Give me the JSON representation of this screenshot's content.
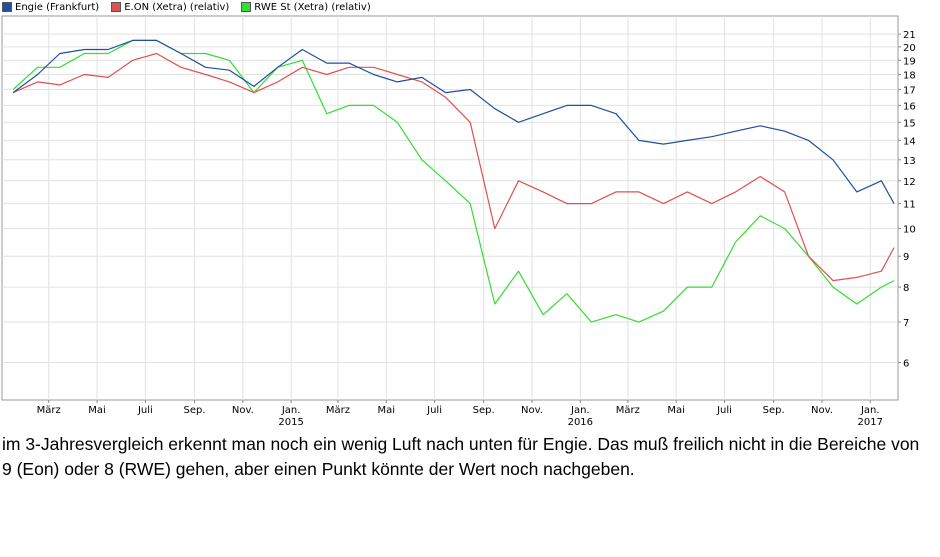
{
  "chart_data": {
    "type": "line",
    "title": "",
    "xlabel": "",
    "ylabel": "",
    "y_scale": "log",
    "ylim": [
      5.2,
      22.5
    ],
    "y_ticks": [
      6,
      7,
      8,
      9,
      10,
      11,
      12,
      13,
      14,
      15,
      16,
      17,
      18,
      19,
      20,
      21
    ],
    "grid": true,
    "legend_position": "top-left",
    "x_ticks": [
      {
        "label": "März",
        "year": ""
      },
      {
        "label": "Mai",
        "year": ""
      },
      {
        "label": "Juli",
        "year": ""
      },
      {
        "label": "Sep.",
        "year": ""
      },
      {
        "label": "Nov.",
        "year": ""
      },
      {
        "label": "Jan.",
        "year": "2015"
      },
      {
        "label": "März",
        "year": ""
      },
      {
        "label": "Mai",
        "year": ""
      },
      {
        "label": "Juli",
        "year": ""
      },
      {
        "label": "Sep.",
        "year": ""
      },
      {
        "label": "Nov.",
        "year": ""
      },
      {
        "label": "Jan.",
        "year": "2016"
      },
      {
        "label": "März",
        "year": ""
      },
      {
        "label": "Mai",
        "year": ""
      },
      {
        "label": "Juli",
        "year": ""
      },
      {
        "label": "Sep.",
        "year": ""
      },
      {
        "label": "Nov.",
        "year": ""
      },
      {
        "label": "Jan.",
        "year": "2017"
      }
    ],
    "x": [
      "2014-01-15",
      "2014-02-15",
      "2014-03-15",
      "2014-04-15",
      "2014-05-15",
      "2014-06-15",
      "2014-07-15",
      "2014-08-15",
      "2014-09-15",
      "2014-10-15",
      "2014-11-15",
      "2014-12-15",
      "2015-01-15",
      "2015-02-15",
      "2015-03-15",
      "2015-04-15",
      "2015-05-15",
      "2015-06-15",
      "2015-07-15",
      "2015-08-15",
      "2015-09-15",
      "2015-10-15",
      "2015-11-15",
      "2015-12-15",
      "2016-01-15",
      "2016-02-15",
      "2016-03-15",
      "2016-04-15",
      "2016-05-15",
      "2016-06-15",
      "2016-07-15",
      "2016-08-15",
      "2016-09-15",
      "2016-10-15",
      "2016-11-15",
      "2016-12-15",
      "2017-01-15",
      "2017-01-31"
    ],
    "series": [
      {
        "name": "Engie (Frankfurt)",
        "color": "#1f4fa0",
        "values": [
          16.8,
          18.0,
          19.5,
          19.8,
          19.8,
          20.5,
          20.5,
          19.5,
          18.5,
          18.3,
          17.2,
          18.5,
          19.8,
          18.8,
          18.8,
          18.0,
          17.5,
          17.8,
          16.8,
          17.0,
          15.8,
          15.0,
          15.5,
          16.0,
          16.0,
          15.5,
          14.0,
          13.8,
          14.0,
          14.2,
          14.5,
          14.8,
          14.5,
          14.0,
          13.0,
          11.5,
          12.0,
          11.0
        ]
      },
      {
        "name": "E.ON (Xetra) (relativ)",
        "color": "#e05050",
        "values": [
          16.8,
          17.5,
          17.3,
          18.0,
          17.8,
          19.0,
          19.5,
          18.5,
          18.0,
          17.5,
          16.8,
          17.5,
          18.5,
          18.0,
          18.5,
          18.5,
          18.0,
          17.5,
          16.5,
          15.0,
          10.0,
          12.0,
          11.5,
          11.0,
          11.0,
          11.5,
          11.5,
          11.0,
          11.5,
          11.0,
          11.5,
          12.2,
          11.5,
          9.0,
          8.2,
          8.3,
          8.5,
          9.3
        ]
      },
      {
        "name": "RWE St (Xetra) (relativ)",
        "color": "#33dd33",
        "values": [
          17.0,
          18.5,
          18.5,
          19.5,
          19.5,
          20.5,
          20.5,
          19.5,
          19.5,
          19.0,
          16.8,
          18.5,
          19.0,
          15.5,
          16.0,
          16.0,
          15.0,
          13.0,
          12.0,
          11.0,
          7.5,
          8.5,
          7.2,
          7.8,
          7.0,
          7.2,
          7.0,
          7.3,
          8.0,
          8.0,
          9.5,
          10.5,
          10.0,
          9.0,
          8.0,
          7.5,
          8.0,
          8.2
        ]
      }
    ]
  },
  "caption": "im 3-Jahresvergleich erkennt man noch ein wenig Luft nach unten für Engie. Das muß freilich nicht in die Bereiche von 9 (Eon) oder 8 (RWE) gehen, aber einen Punkt könnte der Wert noch nachgeben."
}
